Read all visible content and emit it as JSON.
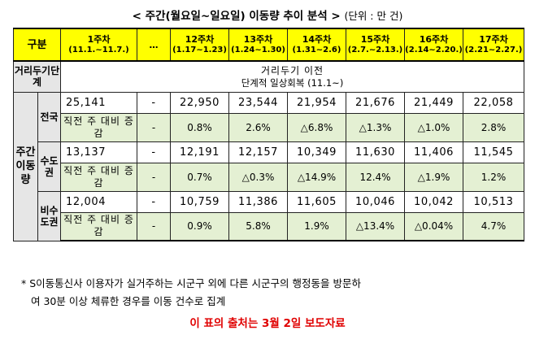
{
  "title": "< 주간(월요일~일요일) 이동량 추이 분석 >",
  "unit": "(단위 : 만 건)",
  "header": {
    "gubun": "구분",
    "ellipsis": "…",
    "weeks": [
      {
        "name": "1주차",
        "range": "(11.1.~11.7.)"
      },
      {
        "name": "12주차",
        "range": "(1.17~1.23)"
      },
      {
        "name": "13주차",
        "range": "(1.24~1.30)"
      },
      {
        "name": "14주차",
        "range": "(1.31~2.6)"
      },
      {
        "name": "15주차",
        "range": "(2.7.~2.13.)"
      },
      {
        "name": "16주차",
        "range": "(2.14~2.20.)"
      },
      {
        "name": "17주차",
        "range": "(2.21~2.27.)"
      }
    ]
  },
  "distancing": {
    "label": "거리두기단계",
    "line1": "거리두기 이전",
    "line2": "단계적 일상회복 (11.1~)"
  },
  "side_label": "주간이동량",
  "sub_label": "직전 주 대비 증감",
  "rows": [
    {
      "region": "전국",
      "values": [
        "25,141",
        "-",
        "22,950",
        "23,544",
        "21,954",
        "21,676",
        "21,449",
        "22,058"
      ],
      "changes": [
        "-",
        "0.8%",
        "2.6%",
        "△6.8%",
        "△1.3%",
        "△1.0%",
        "2.8%"
      ]
    },
    {
      "region": "수도권",
      "values": [
        "13,137",
        "-",
        "12,191",
        "12,157",
        "10,349",
        "11,630",
        "11,406",
        "11,545"
      ],
      "changes": [
        "-",
        "0.7%",
        "△0.3%",
        "△14.9%",
        "12.4%",
        "△1.9%",
        "1.2%"
      ]
    },
    {
      "region": "비수도권",
      "values": [
        "12,004",
        "-",
        "10,759",
        "11,386",
        "11,605",
        "10,046",
        "10,042",
        "10,513"
      ],
      "changes": [
        "-",
        "0.9%",
        "5.8%",
        "1.9%",
        "△13.4%",
        "△0.04%",
        "4.7%"
      ]
    }
  ],
  "note_line1": "* S이동통신사 이용자가 실거주하는 시군구 외에 다른 시군구의 행정동을 방문하",
  "note_line2": "여 30분 이상 체류한 경우를 이동 건수로 집계",
  "source": "이 표의 출처는 3월 2일 보도자료",
  "colors": {
    "header_bg": "#ffff00",
    "change_bg": "#e4f0d3",
    "label_bg": "#e6e6e6",
    "source_text": "#e00000"
  }
}
